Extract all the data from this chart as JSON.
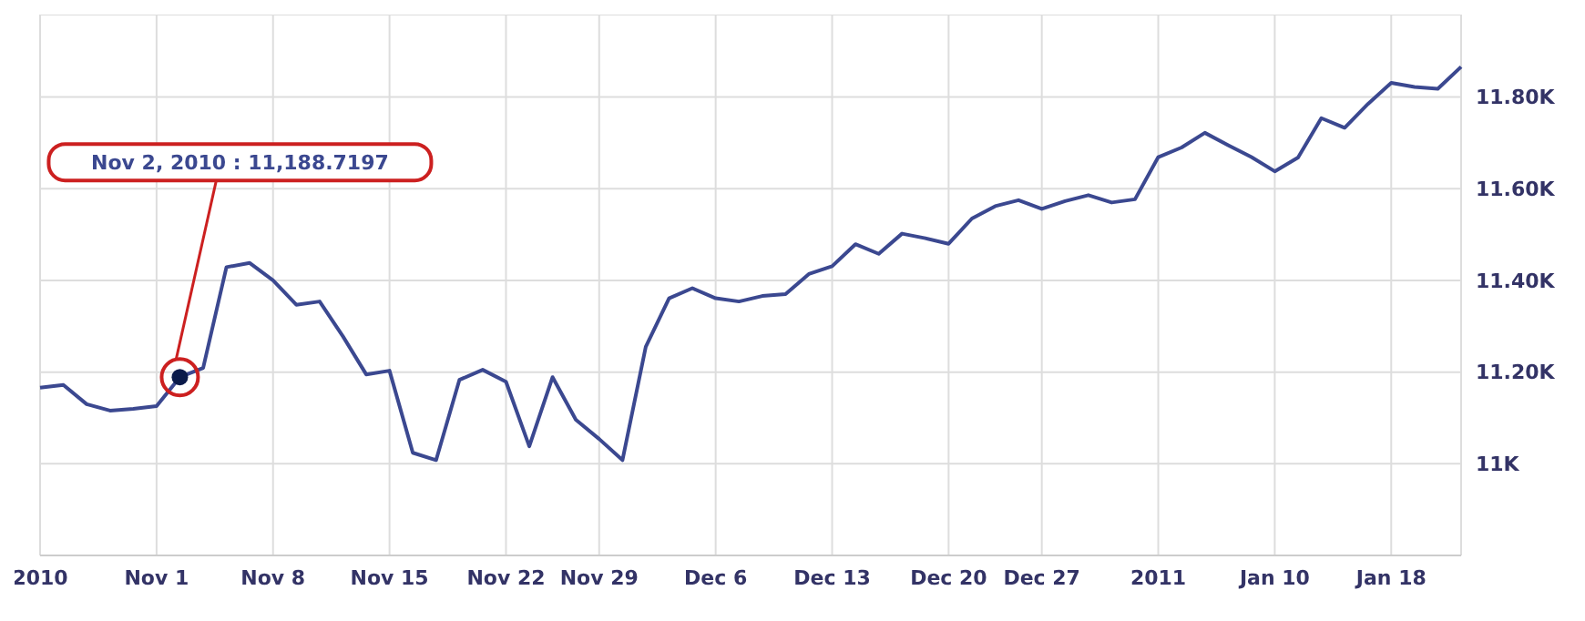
{
  "chart_data": {
    "type": "line",
    "categories": [
      "2010",
      null,
      null,
      null,
      null,
      "Nov 1",
      null,
      null,
      null,
      null,
      "Nov 8",
      null,
      null,
      null,
      null,
      "Nov 15",
      null,
      null,
      null,
      null,
      "Nov 22",
      null,
      null,
      null,
      "Nov 29",
      null,
      null,
      null,
      null,
      "Dec 6",
      null,
      null,
      null,
      null,
      "Dec 13",
      null,
      null,
      null,
      null,
      "Dec 20",
      null,
      null,
      null,
      "Dec 27",
      null,
      null,
      null,
      null,
      "2011",
      null,
      null,
      null,
      null,
      "Jan 10",
      null,
      null,
      null,
      null,
      "Jan 18",
      null,
      null,
      null
    ],
    "series": [
      {
        "color": "#3b4890",
        "values": [
          11166,
          11172,
          11130,
          11116,
          11120,
          11126,
          11189,
          11209,
          11429,
          11438,
          11400,
          11347,
          11354,
          11278,
          11195,
          11203,
          11024,
          11008,
          11183,
          11205,
          11179,
          11038,
          11189,
          11096,
          11054,
          11008,
          11255,
          11361,
          11383,
          11361,
          11354,
          11366,
          11370,
          11414,
          11431,
          11479,
          11458,
          11502,
          11492,
          11480,
          11535,
          11562,
          11575,
          11556,
          11573,
          11586,
          11570,
          11577,
          11669,
          11690,
          11722,
          11695,
          11669,
          11638,
          11668,
          11754,
          11733,
          11785,
          11831,
          11822,
          11818,
          11866
        ]
      }
    ],
    "ylim": [
      10800,
      11980
    ],
    "yticks": [
      {
        "value": 11000,
        "label": "11K"
      },
      {
        "value": 11200,
        "label": "11.20K"
      },
      {
        "value": 11400,
        "label": "11.40K"
      },
      {
        "value": 11600,
        "label": "11.60K"
      },
      {
        "value": 11800,
        "label": "11.80K"
      }
    ],
    "grid": true,
    "annotations": [
      "Nov 2, 2010 :  11,188.7197"
    ]
  }
}
